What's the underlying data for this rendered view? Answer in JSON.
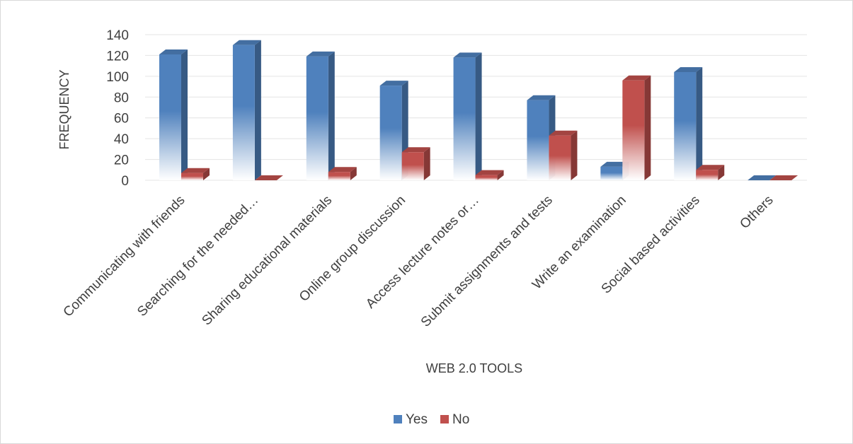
{
  "chart_data": {
    "type": "bar",
    "style": "3d-clustered-column",
    "xlabel": "WEB 2.0 TOOLS",
    "ylabel": "FREQUENCY",
    "ylim": [
      0,
      140
    ],
    "yticks": [
      0,
      20,
      40,
      60,
      80,
      100,
      120,
      140
    ],
    "grid": true,
    "legend_position": "bottom",
    "categories": [
      "Communicating with friends",
      "Searching for the needed…",
      "Sharing educational materials",
      "Online group discussion",
      "Access lecture notes or…",
      "Submit assignments and tests",
      "Write an examination",
      "Social based activities",
      "Others"
    ],
    "series": [
      {
        "name": "Yes",
        "color": "#4f81bd",
        "values": [
          121,
          130,
          119,
          91,
          118,
          77,
          13,
          104,
          0
        ]
      },
      {
        "name": "No",
        "color": "#c0504d",
        "values": [
          7,
          0,
          8,
          27,
          5,
          43,
          96,
          10,
          0
        ]
      }
    ]
  }
}
